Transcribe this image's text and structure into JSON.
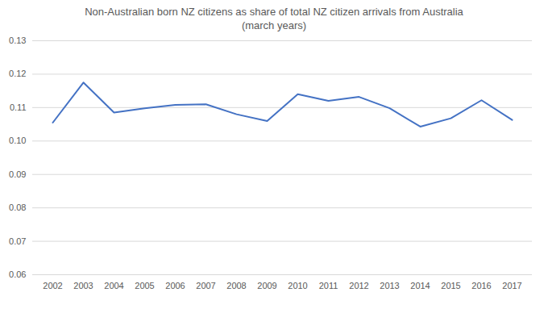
{
  "chart_data": {
    "type": "line",
    "title": "Non-Australian born NZ citizens as share of total NZ citizen arrivals from Australia",
    "subtitle": "(march years)",
    "categories": [
      "2002",
      "2003",
      "2004",
      "2005",
      "2006",
      "2007",
      "2008",
      "2009",
      "2010",
      "2011",
      "2012",
      "2013",
      "2014",
      "2015",
      "2016",
      "2017"
    ],
    "values": [
      0.1055,
      0.1175,
      0.1085,
      0.1098,
      0.1108,
      0.111,
      0.108,
      0.106,
      0.114,
      0.112,
      0.1132,
      0.1098,
      0.1043,
      0.1068,
      0.1122,
      0.1063
    ],
    "color": "#4472c4",
    "ylim": [
      0.06,
      0.13
    ],
    "yticks": [
      0.06,
      0.07,
      0.08,
      0.09,
      {
        "value": 0.1,
        "label": "0.10"
      },
      0.11,
      0.12,
      0.13
    ],
    "grid": true
  }
}
